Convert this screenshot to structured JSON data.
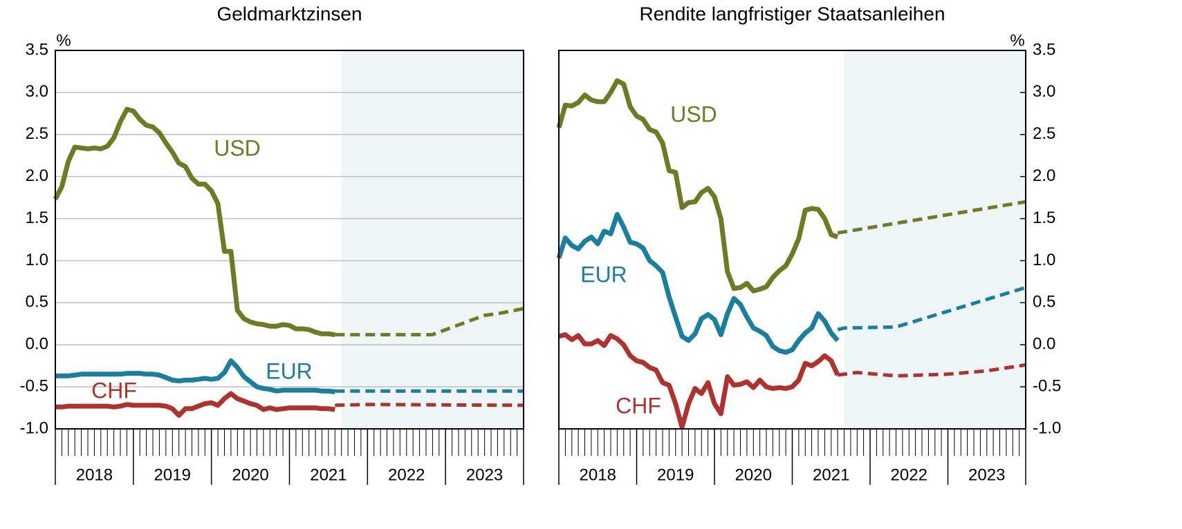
{
  "chart_data": [
    {
      "type": "line",
      "title": "Geldmarktzinsen",
      "y_unit": "%",
      "yaxis_side": "left",
      "xlim": [
        2018,
        2024
      ],
      "ylim": [
        -1,
        3.5
      ],
      "yticks": [
        -0.5,
        {
          "value": -1,
          "label": "-1.0"
        },
        {
          "value": 0,
          "label": "0.0"
        },
        0.5,
        {
          "value": 1,
          "label": "1.0"
        },
        1.5,
        {
          "value": 2,
          "label": "2.0"
        },
        2.5,
        {
          "value": 3,
          "label": "3.0"
        },
        3.5
      ],
      "grid": true,
      "years": [
        "2018",
        "2019",
        "2020",
        "2021",
        "2022",
        "2023"
      ],
      "shaded_region": [
        2021.67,
        2024
      ],
      "shade_color": "#edf5f7",
      "x": [
        2018,
        2018.083,
        2018.167,
        2018.25,
        2018.333,
        2018.417,
        2018.5,
        2018.583,
        2018.667,
        2018.75,
        2018.833,
        2018.917,
        2019,
        2019.083,
        2019.167,
        2019.25,
        2019.333,
        2019.417,
        2019.5,
        2019.583,
        2019.667,
        2019.75,
        2019.833,
        2019.917,
        2020,
        2020.083,
        2020.167,
        2020.25,
        2020.333,
        2020.417,
        2020.5,
        2020.583,
        2020.667,
        2020.75,
        2020.833,
        2020.917,
        2021,
        2021.083,
        2021.167,
        2021.25,
        2021.333,
        2021.417,
        2021.5,
        2021.583
      ],
      "series": [
        {
          "name": "USD",
          "color": "#6e7b22",
          "values": [
            1.73,
            1.88,
            2.18,
            2.35,
            2.34,
            2.33,
            2.34,
            2.33,
            2.36,
            2.46,
            2.65,
            2.8,
            2.78,
            2.68,
            2.61,
            2.59,
            2.52,
            2.4,
            2.29,
            2.16,
            2.12,
            1.98,
            1.91,
            1.91,
            1.83,
            1.68,
            1.11,
            1.11,
            0.41,
            0.31,
            0.27,
            0.25,
            0.24,
            0.22,
            0.22,
            0.24,
            0.23,
            0.19,
            0.19,
            0.18,
            0.15,
            0.13,
            0.13,
            0.12
          ],
          "forecast_x": [
            2021.583,
            2022.83,
            2023.5,
            2023.67,
            2024
          ],
          "forecast_values": [
            0.12,
            0.12,
            0.35,
            0.37,
            0.43
          ]
        },
        {
          "name": "EUR",
          "color": "#1a7f9e",
          "values": [
            -0.37,
            -0.37,
            -0.37,
            -0.36,
            -0.35,
            -0.35,
            -0.35,
            -0.35,
            -0.35,
            -0.35,
            -0.35,
            -0.34,
            -0.34,
            -0.34,
            -0.35,
            -0.35,
            -0.36,
            -0.39,
            -0.42,
            -0.43,
            -0.42,
            -0.42,
            -0.41,
            -0.4,
            -0.41,
            -0.4,
            -0.33,
            -0.19,
            -0.27,
            -0.38,
            -0.44,
            -0.5,
            -0.52,
            -0.53,
            -0.55,
            -0.54,
            -0.54,
            -0.54,
            -0.54,
            -0.54,
            -0.54,
            -0.55,
            -0.55,
            -0.56
          ],
          "forecast_x": [
            2021.583,
            2024
          ],
          "forecast_values": [
            -0.55,
            -0.55
          ]
        },
        {
          "name": "CHF",
          "color": "#b0322f",
          "values": [
            -0.74,
            -0.74,
            -0.73,
            -0.73,
            -0.73,
            -0.73,
            -0.73,
            -0.73,
            -0.73,
            -0.74,
            -0.73,
            -0.71,
            -0.72,
            -0.72,
            -0.72,
            -0.72,
            -0.72,
            -0.73,
            -0.76,
            -0.84,
            -0.76,
            -0.76,
            -0.73,
            -0.7,
            -0.69,
            -0.72,
            -0.64,
            -0.58,
            -0.64,
            -0.67,
            -0.7,
            -0.72,
            -0.77,
            -0.75,
            -0.77,
            -0.76,
            -0.75,
            -0.75,
            -0.75,
            -0.75,
            -0.75,
            -0.76,
            -0.76,
            -0.77
          ],
          "forecast_x": [
            2021.583,
            2022,
            2024
          ],
          "forecast_values": [
            -0.72,
            -0.71,
            -0.72
          ]
        }
      ]
    },
    {
      "type": "line",
      "title": "Rendite langfristiger Staatsanleihen",
      "y_unit": "%",
      "yaxis_side": "right",
      "xlim": [
        2018,
        2024
      ],
      "ylim": [
        -1,
        3.5
      ],
      "yticks": [
        -0.5,
        {
          "value": -1,
          "label": "-1.0"
        },
        {
          "value": 0,
          "label": "0.0"
        },
        0.5,
        {
          "value": 1,
          "label": "1.0"
        },
        1.5,
        {
          "value": 2,
          "label": "2.0"
        },
        2.5,
        {
          "value": 3,
          "label": "3.0"
        },
        3.5
      ],
      "grid": false,
      "years": [
        "2018",
        "2019",
        "2020",
        "2021",
        "2022",
        "2023"
      ],
      "shaded_region": [
        2021.67,
        2024
      ],
      "shade_color": "#edf5f7",
      "x": [
        2018,
        2018.083,
        2018.167,
        2018.25,
        2018.333,
        2018.417,
        2018.5,
        2018.583,
        2018.667,
        2018.75,
        2018.833,
        2018.917,
        2019,
        2019.083,
        2019.167,
        2019.25,
        2019.333,
        2019.417,
        2019.5,
        2019.583,
        2019.667,
        2019.75,
        2019.833,
        2019.917,
        2020,
        2020.083,
        2020.167,
        2020.25,
        2020.333,
        2020.417,
        2020.5,
        2020.583,
        2020.667,
        2020.75,
        2020.833,
        2020.917,
        2021,
        2021.083,
        2021.167,
        2021.25,
        2021.333,
        2021.417,
        2021.5,
        2021.583
      ],
      "series": [
        {
          "name": "USD",
          "color": "#6e7b22",
          "values": [
            2.58,
            2.85,
            2.84,
            2.88,
            2.97,
            2.91,
            2.89,
            2.89,
            3.0,
            3.14,
            3.1,
            2.83,
            2.72,
            2.68,
            2.56,
            2.53,
            2.4,
            2.07,
            2.05,
            1.63,
            1.69,
            1.7,
            1.81,
            1.86,
            1.76,
            1.5,
            0.87,
            0.67,
            0.68,
            0.73,
            0.64,
            0.66,
            0.69,
            0.8,
            0.88,
            0.94,
            1.08,
            1.26,
            1.6,
            1.62,
            1.61,
            1.5,
            1.31,
            1.28
          ],
          "forecast_x": [
            2021.583,
            2024
          ],
          "forecast_values": [
            1.33,
            1.7
          ]
        },
        {
          "name": "EUR",
          "color": "#1a7f9e",
          "values": [
            1.03,
            1.27,
            1.18,
            1.14,
            1.23,
            1.28,
            1.2,
            1.35,
            1.32,
            1.55,
            1.4,
            1.22,
            1.2,
            1.15,
            1.0,
            0.94,
            0.86,
            0.57,
            0.33,
            0.1,
            0.05,
            0.13,
            0.31,
            0.36,
            0.3,
            0.12,
            0.37,
            0.55,
            0.48,
            0.33,
            0.2,
            0.16,
            0.11,
            -0.02,
            -0.07,
            -0.09,
            -0.06,
            0.05,
            0.14,
            0.2,
            0.37,
            0.28,
            0.14,
            0.05
          ],
          "forecast_x": [
            2021.583,
            2021.67,
            2022.33,
            2024
          ],
          "forecast_values": [
            0.18,
            0.2,
            0.21,
            0.68
          ]
        },
        {
          "name": "CHF",
          "color": "#b0322f",
          "values": [
            0.1,
            0.12,
            0.06,
            0.11,
            0.01,
            0.01,
            0.05,
            -0.01,
            0.11,
            0.07,
            0.0,
            -0.13,
            -0.19,
            -0.21,
            -0.27,
            -0.3,
            -0.45,
            -0.48,
            -0.7,
            -0.98,
            -0.7,
            -0.52,
            -0.58,
            -0.45,
            -0.7,
            -0.82,
            -0.38,
            -0.48,
            -0.47,
            -0.44,
            -0.51,
            -0.42,
            -0.5,
            -0.52,
            -0.51,
            -0.52,
            -0.5,
            -0.42,
            -0.22,
            -0.25,
            -0.2,
            -0.13,
            -0.19,
            -0.36
          ],
          "forecast_x": [
            2021.583,
            2021.83,
            2022.33,
            2023,
            2023.5,
            2024
          ],
          "forecast_values": [
            -0.36,
            -0.33,
            -0.37,
            -0.35,
            -0.31,
            -0.24
          ]
        }
      ]
    }
  ]
}
